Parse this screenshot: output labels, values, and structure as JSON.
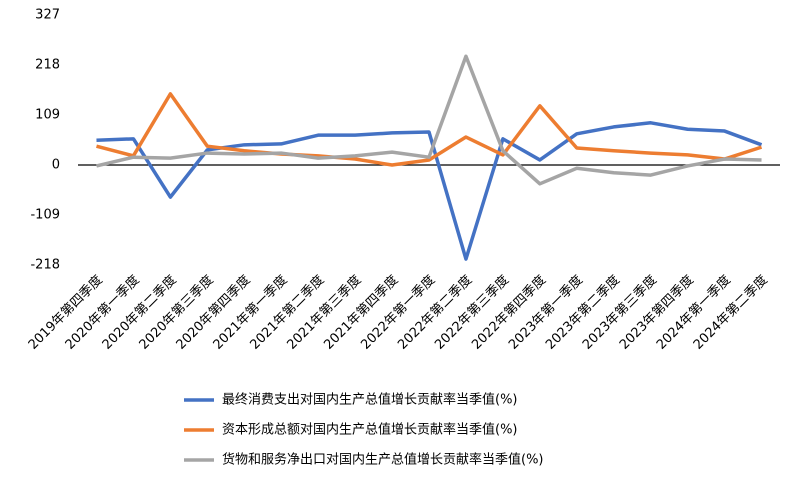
{
  "chart_data": {
    "type": "line",
    "categories": [
      "2019年第四季度",
      "2020年第一季度",
      "2020年第二季度",
      "2020年第三季度",
      "2020年第四季度",
      "2021年第一季度",
      "2021年第二季度",
      "2021年第三季度",
      "2021年第四季度",
      "2022年第一季度",
      "2022年第二季度",
      "2022年第三季度",
      "2022年第四季度",
      "2023年第一季度",
      "2023年第二季度",
      "2023年第三季度",
      "2023年第四季度",
      "2024年第一季度",
      "2024年第二季度"
    ],
    "series": [
      {
        "name": "最终消费支出对国内生产总值增长贡献率当季值(%)",
        "color": "#4472c4",
        "values": [
          54,
          57,
          -70,
          33,
          44,
          46,
          65,
          65,
          70,
          72,
          -205,
          57,
          11,
          68,
          83,
          92,
          78,
          74,
          44
        ]
      },
      {
        "name": "资本形成总额对国内生产总值增长贡献率当季值(%)",
        "color": "#ed7d31",
        "values": [
          41,
          20,
          155,
          41,
          31,
          24,
          20,
          13,
          0,
          11,
          61,
          22,
          129,
          37,
          31,
          26,
          22,
          13,
          39
        ]
      },
      {
        "name": "货物和服务净出口对国内生产总值增长贡献率当季值(%)",
        "color": "#a5a5a5",
        "values": [
          -2,
          17,
          15,
          26,
          24,
          26,
          15,
          20,
          28,
          17,
          237,
          31,
          -41,
          -7,
          -17,
          -22,
          -2,
          13,
          11
        ]
      }
    ],
    "ylim": [
      -218,
      327
    ],
    "yticks": [
      -218,
      -109,
      0,
      109,
      218,
      327
    ],
    "legend": "bottom"
  }
}
